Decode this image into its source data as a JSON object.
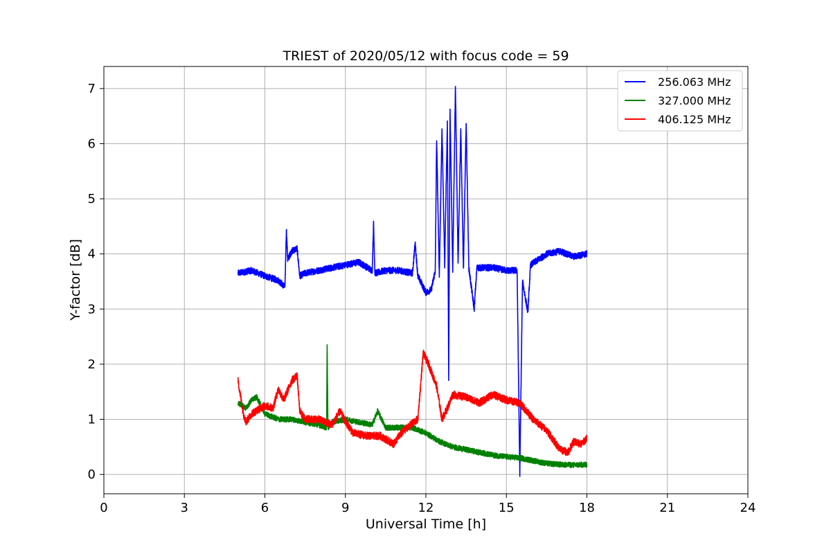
{
  "chart_data": {
    "type": "line",
    "title": "TRIEST of 2020/05/12 with focus code = 59",
    "xlabel": "Universal Time [h]",
    "ylabel": "Y-factor [dB]",
    "xlim": [
      0,
      24
    ],
    "ylim": [
      -0.35,
      7.4
    ],
    "xticks": [
      0,
      3,
      6,
      9,
      12,
      15,
      18,
      21,
      24
    ],
    "yticks": [
      0,
      1,
      2,
      3,
      4,
      5,
      6,
      7
    ],
    "grid": true,
    "legend_position": "top-right",
    "series": [
      {
        "name": "256.063 MHz",
        "color": "#0000ff",
        "noise": 0.06,
        "points": [
          [
            5.0,
            3.65
          ],
          [
            5.5,
            3.7
          ],
          [
            6.0,
            3.6
          ],
          [
            6.5,
            3.52
          ],
          [
            6.75,
            3.4
          ],
          [
            6.8,
            4.45
          ],
          [
            6.85,
            3.9
          ],
          [
            7.0,
            4.05
          ],
          [
            7.2,
            4.1
          ],
          [
            7.3,
            3.6
          ],
          [
            7.5,
            3.65
          ],
          [
            8.0,
            3.7
          ],
          [
            8.5,
            3.75
          ],
          [
            9.0,
            3.8
          ],
          [
            9.5,
            3.85
          ],
          [
            10.0,
            3.7
          ],
          [
            10.05,
            4.55
          ],
          [
            10.1,
            3.65
          ],
          [
            10.5,
            3.7
          ],
          [
            11.0,
            3.7
          ],
          [
            11.5,
            3.65
          ],
          [
            11.6,
            4.2
          ],
          [
            11.7,
            3.6
          ],
          [
            12.0,
            3.3
          ],
          [
            12.2,
            3.35
          ],
          [
            12.35,
            3.7
          ],
          [
            12.4,
            6.1
          ],
          [
            12.5,
            3.6
          ],
          [
            12.6,
            6.3
          ],
          [
            12.7,
            3.8
          ],
          [
            12.8,
            6.4
          ],
          [
            12.85,
            1.75
          ],
          [
            12.9,
            6.6
          ],
          [
            13.0,
            3.7
          ],
          [
            13.1,
            7.05
          ],
          [
            13.2,
            3.8
          ],
          [
            13.3,
            6.3
          ],
          [
            13.4,
            3.7
          ],
          [
            13.5,
            6.4
          ],
          [
            13.6,
            3.75
          ],
          [
            13.8,
            3.0
          ],
          [
            13.9,
            3.75
          ],
          [
            14.5,
            3.75
          ],
          [
            15.0,
            3.7
          ],
          [
            15.4,
            3.7
          ],
          [
            15.5,
            0.0
          ],
          [
            15.6,
            3.5
          ],
          [
            15.8,
            2.95
          ],
          [
            15.9,
            3.8
          ],
          [
            16.5,
            4.0
          ],
          [
            17.0,
            4.05
          ],
          [
            17.5,
            3.95
          ],
          [
            18.0,
            4.0
          ]
        ]
      },
      {
        "name": "327.000 MHz",
        "color": "#008000",
        "noise": 0.05,
        "points": [
          [
            5.0,
            1.3
          ],
          [
            5.3,
            1.2
          ],
          [
            5.5,
            1.35
          ],
          [
            5.7,
            1.4
          ],
          [
            6.0,
            1.1
          ],
          [
            6.5,
            1.0
          ],
          [
            7.0,
            1.0
          ],
          [
            7.5,
            0.95
          ],
          [
            8.0,
            0.9
          ],
          [
            8.3,
            0.85
          ],
          [
            8.32,
            2.4
          ],
          [
            8.35,
            0.85
          ],
          [
            8.5,
            0.95
          ],
          [
            9.0,
            1.0
          ],
          [
            9.5,
            0.95
          ],
          [
            10.0,
            0.9
          ],
          [
            10.2,
            1.15
          ],
          [
            10.5,
            0.85
          ],
          [
            11.0,
            0.85
          ],
          [
            11.5,
            0.85
          ],
          [
            12.0,
            0.75
          ],
          [
            12.5,
            0.6
          ],
          [
            13.0,
            0.5
          ],
          [
            13.5,
            0.45
          ],
          [
            14.0,
            0.4
          ],
          [
            14.5,
            0.35
          ],
          [
            15.0,
            0.32
          ],
          [
            15.5,
            0.3
          ],
          [
            16.0,
            0.25
          ],
          [
            16.5,
            0.2
          ],
          [
            17.0,
            0.18
          ],
          [
            17.5,
            0.17
          ],
          [
            18.0,
            0.18
          ]
        ]
      },
      {
        "name": "406.125 MHz",
        "color": "#ff0000",
        "noise": 0.07,
        "points": [
          [
            5.0,
            1.7
          ],
          [
            5.1,
            1.4
          ],
          [
            5.2,
            1.1
          ],
          [
            5.3,
            0.95
          ],
          [
            5.5,
            1.1
          ],
          [
            6.0,
            1.25
          ],
          [
            6.3,
            1.2
          ],
          [
            6.5,
            1.55
          ],
          [
            6.7,
            1.35
          ],
          [
            7.0,
            1.7
          ],
          [
            7.2,
            1.8
          ],
          [
            7.3,
            1.15
          ],
          [
            7.5,
            1.0
          ],
          [
            8.0,
            1.0
          ],
          [
            8.5,
            0.9
          ],
          [
            8.8,
            1.15
          ],
          [
            9.0,
            0.95
          ],
          [
            9.3,
            0.75
          ],
          [
            9.8,
            0.7
          ],
          [
            10.3,
            0.7
          ],
          [
            10.8,
            0.55
          ],
          [
            11.0,
            0.7
          ],
          [
            11.3,
            0.85
          ],
          [
            11.7,
            1.0
          ],
          [
            11.9,
            2.2
          ],
          [
            12.1,
            2.0
          ],
          [
            12.4,
            1.6
          ],
          [
            12.6,
            1.0
          ],
          [
            12.8,
            1.2
          ],
          [
            13.0,
            1.45
          ],
          [
            13.5,
            1.4
          ],
          [
            14.0,
            1.3
          ],
          [
            14.5,
            1.45
          ],
          [
            15.0,
            1.35
          ],
          [
            15.5,
            1.3
          ],
          [
            16.0,
            1.0
          ],
          [
            16.5,
            0.8
          ],
          [
            17.0,
            0.45
          ],
          [
            17.3,
            0.4
          ],
          [
            17.5,
            0.6
          ],
          [
            17.8,
            0.55
          ],
          [
            18.0,
            0.65
          ]
        ]
      }
    ]
  }
}
